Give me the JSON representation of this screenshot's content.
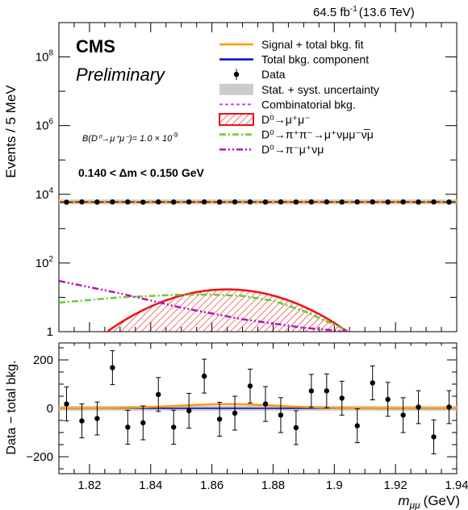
{
  "header": {
    "luminosity_label": "64.5 fb",
    "luminosity_sup": "-1",
    "energy_label": "(13.6 TeV)"
  },
  "labels": {
    "experiment": "CMS",
    "status": "Preliminary",
    "branching_text": "B(D⁰→μ⁺μ⁻)= 1.0 × 10",
    "branching_exp": "-9",
    "dm_window": "0.140 < Δm < 0.150 GeV"
  },
  "legend": [
    {
      "key": "fit",
      "label": "Signal + total bkg. fit",
      "color": "#ff9900",
      "style": "line"
    },
    {
      "key": "bkg",
      "label": "Total bkg. component",
      "color": "#0000cc",
      "style": "line"
    },
    {
      "key": "data",
      "label": "Data",
      "color": "#000000",
      "style": "marker"
    },
    {
      "key": "unc",
      "label": "Stat. + syst. uncertainty",
      "color": "#cccccc",
      "style": "box"
    },
    {
      "key": "comb",
      "label": "Combinatorial bkg.",
      "color": "#cc44ee",
      "style": "dashed"
    },
    {
      "key": "sig",
      "label": "D⁰→μ⁺μ⁻",
      "color": "#ee1111",
      "style": "hatched"
    },
    {
      "key": "pipi",
      "label": "D⁰→π⁺π⁻→μ⁺νμμ⁻ν̅μ",
      "color": "#66cc33",
      "style": "dashdot"
    },
    {
      "key": "pimu",
      "label": "D⁰→π⁻μ⁺νμ",
      "color": "#bb11bb",
      "style": "dashdotdot"
    }
  ],
  "chart_data": {
    "type": "line",
    "xlabel": "mμμ (GeV)",
    "xlabel_main": "m",
    "xlabel_sub": "μμ",
    "xlabel_unit": "(GeV)",
    "ylabel_top": "Events / 5 MeV",
    "ylabel_bottom": "Data − total bkg.",
    "xlim": [
      1.81,
      1.94
    ],
    "xticks": [
      "1.82",
      "1.84",
      "1.86",
      "1.88",
      "1.9",
      "1.92",
      "1.94"
    ],
    "top_panel": {
      "yscale": "log",
      "ylim": [
        1,
        1000000000
      ],
      "yticks": [
        {
          "base": "1",
          "exp": ""
        },
        {
          "base": "10",
          "exp": "2"
        },
        {
          "base": "10",
          "exp": "4"
        },
        {
          "base": "10",
          "exp": "6"
        },
        {
          "base": "10",
          "exp": "8"
        }
      ],
      "data_x": [
        1.8125,
        1.8175,
        1.8225,
        1.8275,
        1.8325,
        1.8375,
        1.8425,
        1.8475,
        1.8525,
        1.8575,
        1.8625,
        1.8675,
        1.8725,
        1.8775,
        1.8825,
        1.8875,
        1.8925,
        1.8975,
        1.9025,
        1.9075,
        1.9125,
        1.9175,
        1.9225,
        1.9275,
        1.9325,
        1.9375
      ],
      "data_y": [
        5900,
        6000,
        5950,
        6000,
        6000,
        5900,
        6000,
        5950,
        6000,
        6000,
        5950,
        6000,
        6000,
        5950,
        6000,
        5950,
        6000,
        6000,
        5950,
        6000,
        6000,
        5950,
        6000,
        5950,
        6000,
        5950
      ],
      "total_fit": 6000,
      "signal": {
        "mean": 1.865,
        "sigma": 0.0165,
        "peak": 17
      },
      "pipi_x": [
        1.81,
        1.83,
        1.85,
        1.86,
        1.87,
        1.88,
        1.89,
        1.9,
        1.905
      ],
      "pipi_y": [
        7,
        10,
        12,
        12,
        11,
        8,
        4,
        1.6,
        1.0
      ],
      "pimu_x": [
        1.81,
        1.83,
        1.85,
        1.87,
        1.89,
        1.905
      ],
      "pimu_y": [
        30,
        13,
        5,
        2.3,
        1.3,
        1.0
      ]
    },
    "bottom_panel": {
      "ylim": [
        -270,
        270
      ],
      "yticks": [
        -200,
        0,
        200
      ],
      "data_x": [
        1.8125,
        1.8175,
        1.8225,
        1.8275,
        1.8325,
        1.8375,
        1.8425,
        1.8475,
        1.8525,
        1.8575,
        1.8625,
        1.8675,
        1.8725,
        1.8775,
        1.8825,
        1.8875,
        1.8925,
        1.8975,
        1.9025,
        1.9075,
        1.9125,
        1.9175,
        1.9225,
        1.9275,
        1.9325,
        1.9375
      ],
      "data_y": [
        18,
        -52,
        -42,
        168,
        -78,
        -60,
        57,
        -78,
        -10,
        133,
        -45,
        -20,
        92,
        18,
        -28,
        -80,
        72,
        72,
        42,
        -72,
        105,
        37,
        -28,
        5,
        -118,
        5
      ],
      "errors": [
        70,
        70,
        68,
        70,
        70,
        70,
        70,
        70,
        72,
        70,
        70,
        70,
        70,
        72,
        72,
        70,
        68,
        70,
        70,
        70,
        70,
        70,
        72,
        68,
        70,
        68
      ],
      "fit_signal_peak": 17
    }
  }
}
